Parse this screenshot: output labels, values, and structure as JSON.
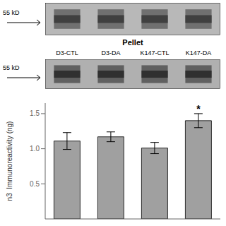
{
  "chart_data": {
    "type": "bar",
    "categories": [
      "D3-CTL",
      "D3-DA",
      "K147-CTL",
      "K147-DA"
    ],
    "values": [
      1.11,
      1.17,
      1.01,
      1.4
    ],
    "errors": [
      0.12,
      0.07,
      0.08,
      0.1
    ],
    "color": "#a0a0a0",
    "ylabel": "n3  Immunoreactivity (ng)",
    "ylim": [
      0,
      1.65
    ],
    "yticks": [
      0.5,
      {
        "value": 1.0,
        "label": "1.0"
      },
      1.5
    ],
    "annotations": [
      {
        "text": "55 kD"
      },
      {
        "text": "Pellet"
      },
      {
        "text": "55 kD"
      },
      {
        "text": "*",
        "category": "K147-DA"
      }
    ]
  }
}
